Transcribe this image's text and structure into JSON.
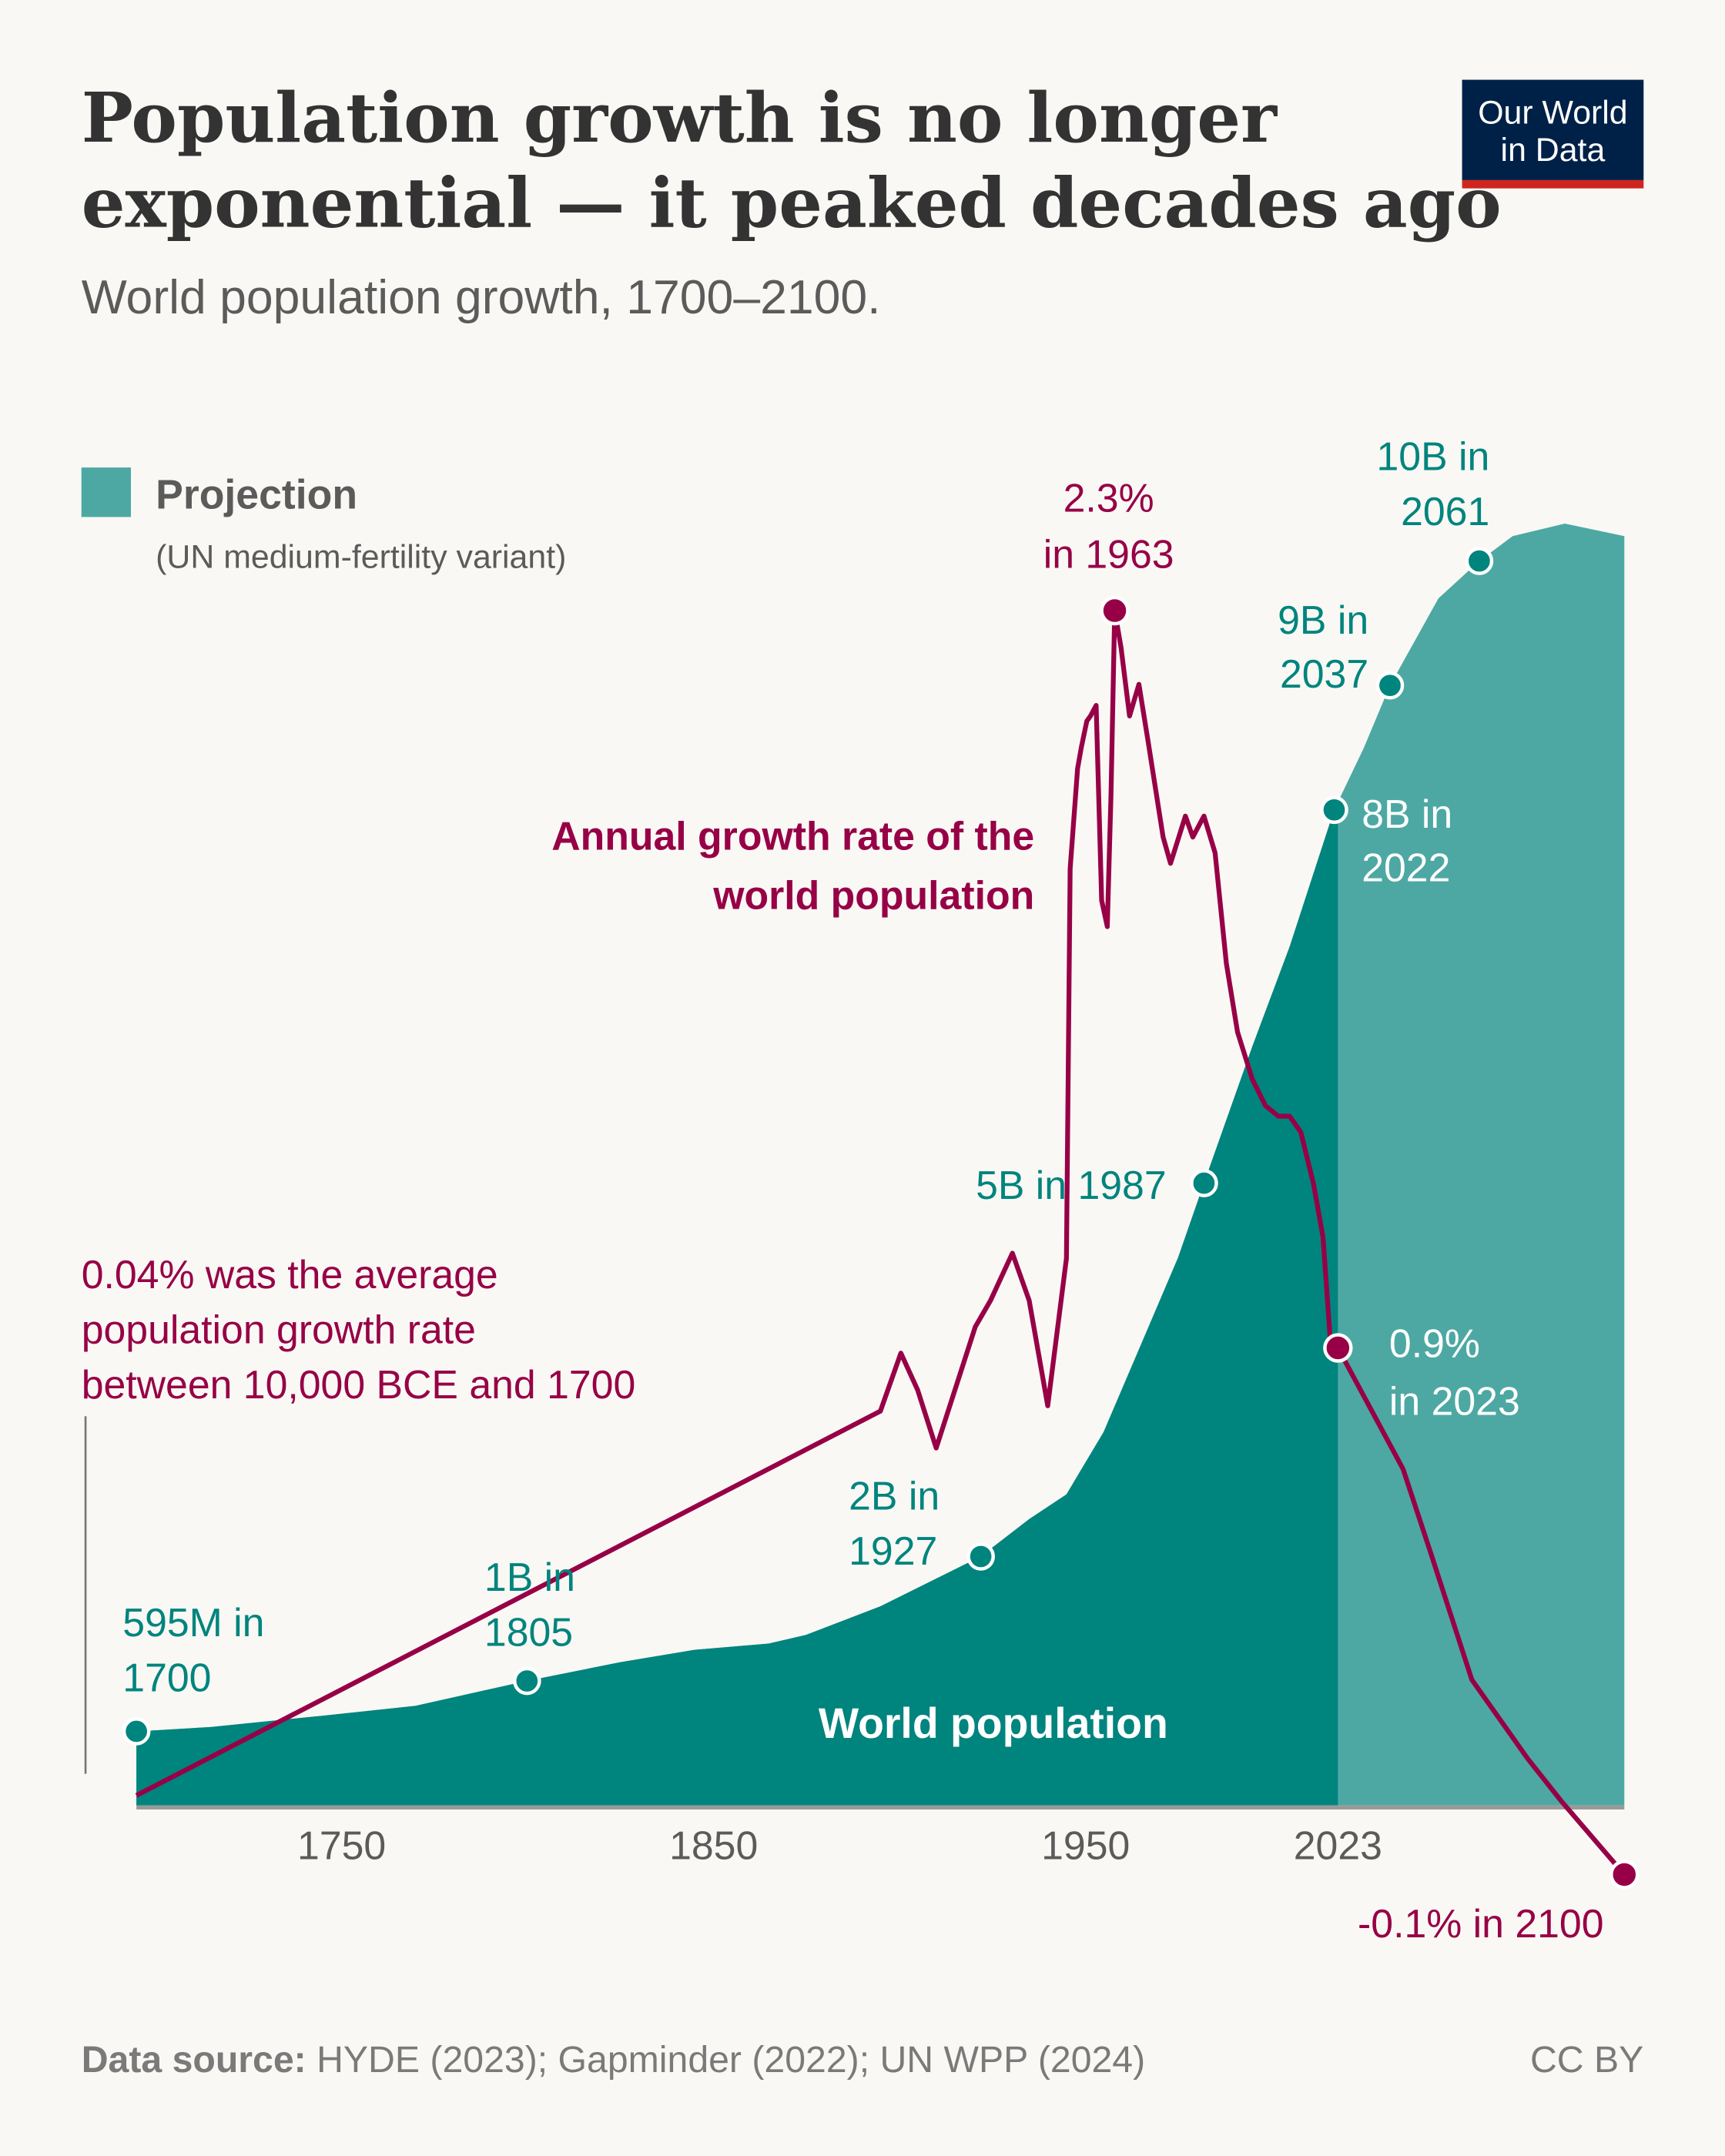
{
  "header": {
    "title_line1": "Population growth is no longer",
    "title_line2": "exponential — it peaked decades ago",
    "subtitle": "World population growth, 1700–2100.",
    "logo_line1": "Our World",
    "logo_line2": "in Data"
  },
  "legend": {
    "label": "Projection",
    "sublabel": "(UN medium-fertility variant)",
    "color": "#4DA8A3"
  },
  "colors": {
    "background": "#F9F8F4",
    "population_historical": "#00847E",
    "population_projection": "#4DA8A3",
    "growth_rate": "#970046",
    "logo_bg": "#002147",
    "logo_accent": "#CE261E"
  },
  "annotations": {
    "peak_rate": [
      "2.3%",
      "in 1963"
    ],
    "rate_series_label": [
      "Annual growth rate of the",
      "world population"
    ],
    "avg_rate_note": [
      "0.04% was the average",
      "population growth rate",
      "between 10,000 BCE and 1700"
    ],
    "rate_2023": [
      "0.9%",
      "in 2023"
    ],
    "rate_2100": "-0.1% in 2100",
    "pop_10b": [
      "10B in",
      "2061"
    ],
    "pop_9b": [
      "9B in",
      "2037"
    ],
    "pop_8b": [
      "8B in",
      "2022"
    ],
    "pop_5b": "5B in 1987",
    "pop_2b": [
      "2B in",
      "1927"
    ],
    "pop_1b": [
      "1B in",
      "1805"
    ],
    "pop_595m": [
      "595M in",
      "1700"
    ],
    "area_label": "World population"
  },
  "footer": {
    "source_label": "Data source:",
    "source_text": " HYDE (2023); Gapminder (2022); UN WPP (2024)",
    "license": "CC BY"
  },
  "chart_data": {
    "type": "area+line",
    "title": "Population growth is no longer exponential — it peaked decades ago",
    "subtitle": "World population growth, 1700–2100.",
    "xlim": [
      1700,
      2100
    ],
    "x_ticks": [
      1750,
      1850,
      1950,
      2023
    ],
    "projection_start": 2023,
    "grid": false,
    "legend_placement": "top-left",
    "series": [
      {
        "name": "World population",
        "unit": "billions",
        "type": "area",
        "x": [
          1700,
          1720,
          1750,
          1775,
          1805,
          1830,
          1850,
          1870,
          1880,
          1900,
          1927,
          1940,
          1950,
          1960,
          1970,
          1980,
          1987,
          2000,
          2010,
          2022,
          2030,
          2037,
          2050,
          2061,
          2070,
          2084,
          2100
        ],
        "y": [
          0.595,
          0.63,
          0.72,
          0.8,
          1.0,
          1.15,
          1.25,
          1.3,
          1.37,
          1.6,
          2.0,
          2.3,
          2.5,
          3.0,
          3.7,
          4.4,
          5.0,
          6.1,
          6.9,
          8.0,
          8.5,
          9.0,
          9.7,
          10.0,
          10.2,
          10.3,
          10.2
        ]
      },
      {
        "name": "Annual growth rate of the world population",
        "unit": "%",
        "type": "line",
        "x": [
          1700,
          1900,
          1905.5,
          1910,
          1915,
          1925.5,
          1929.6,
          1935.5,
          1940,
          1945,
          1950,
          1951,
          1953,
          1954,
          1955.5,
          1956.5,
          1958,
          1959.5,
          1961,
          1962,
          1963,
          1964.7,
          1967,
          1969.5,
          1972,
          1976,
          1978,
          1982,
          1984,
          1987,
          1990,
          1993,
          1996,
          2000,
          2003.5,
          2007,
          2010,
          2013,
          2016.5,
          2019,
          2021,
          2023,
          2040.5,
          2048,
          2059,
          2074,
          2083,
          2100
        ],
        "y": [
          0.05,
          0.78,
          0.89,
          0.82,
          0.71,
          0.94,
          0.99,
          1.08,
          0.99,
          0.79,
          1.07,
          1.81,
          2.0,
          2.04,
          2.09,
          2.1,
          2.12,
          1.75,
          1.7,
          1.95,
          2.3,
          2.23,
          2.1,
          2.16,
          2.05,
          1.87,
          1.82,
          1.91,
          1.87,
          1.91,
          1.84,
          1.63,
          1.5,
          1.41,
          1.36,
          1.34,
          1.34,
          1.31,
          1.21,
          1.11,
          0.91,
          0.9,
          0.67,
          0.51,
          0.27,
          0.12,
          0.04,
          -0.1
        ]
      }
    ],
    "population_markers": [
      {
        "year": 1700,
        "value": 0.595
      },
      {
        "year": 1805,
        "value": 1
      },
      {
        "year": 1927,
        "value": 2
      },
      {
        "year": 1987,
        "value": 5
      },
      {
        "year": 2022,
        "value": 8
      },
      {
        "year": 2037,
        "value": 9
      },
      {
        "year": 2061,
        "value": 10
      }
    ],
    "rate_markers": [
      {
        "year": 1963,
        "value": 2.3
      },
      {
        "year": 2023,
        "value": 0.9
      },
      {
        "year": 2100,
        "value": -0.1
      }
    ]
  }
}
